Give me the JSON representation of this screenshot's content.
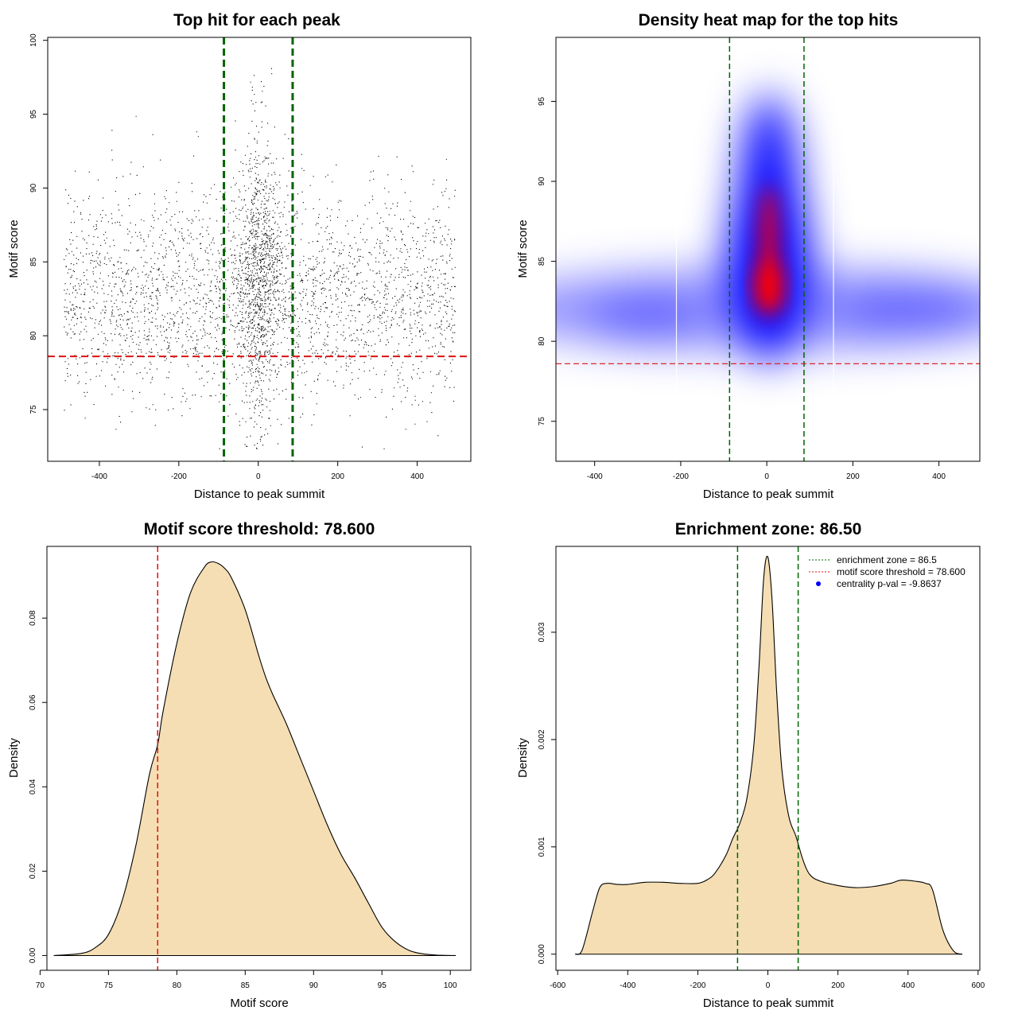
{
  "chart_data": [
    {
      "id": "scatter",
      "type": "scatter",
      "title": "Top hit for each peak",
      "xlabel": "Distance to peak summit",
      "ylabel": "Motif score",
      "xlim": [
        -530,
        535
      ],
      "ylim": [
        71.5,
        100.2
      ],
      "xticks": [
        -400,
        -200,
        0,
        200,
        400
      ],
      "yticks": [
        75,
        80,
        85,
        90,
        95,
        100
      ],
      "x_range_of_points": [
        -490,
        495
      ],
      "y_center_of_points": 83.5,
      "point_color": "#000000",
      "vlines": [
        -86.5,
        86.5
      ],
      "vline_color": "#006400",
      "hline": 78.6,
      "hline_color": "#dd1111",
      "grid": false
    },
    {
      "id": "heatmap",
      "type": "heatmap",
      "title": "Density heat map for the top hits",
      "xlabel": "Distance to peak summit",
      "ylabel": "Motif score",
      "xlim": [
        -490,
        495
      ],
      "ylim": [
        72.5,
        99
      ],
      "xticks": [
        -400,
        -200,
        0,
        200,
        400
      ],
      "yticks": [
        75,
        80,
        85,
        90,
        95
      ],
      "colormap": [
        "#ffffff",
        "#0000ff",
        "#ff0000"
      ],
      "density_peak": {
        "x": 5,
        "y": 83.5
      },
      "vlines": [
        -86.5,
        86.5
      ],
      "vline_color": "#006400",
      "hline": 78.6,
      "hline_color": "#dd1111"
    },
    {
      "id": "score-density",
      "type": "area",
      "title": "Motif score threshold: 78.600",
      "xlabel": "Motif score",
      "ylabel": "Density",
      "xlim": [
        70.5,
        101.5
      ],
      "ylim": [
        -0.0035,
        0.097
      ],
      "xticks": [
        70,
        75,
        80,
        85,
        90,
        95,
        100
      ],
      "yticks": [
        0.0,
        0.02,
        0.04,
        0.06,
        0.08
      ],
      "ytick_labels": [
        "0.00",
        "0.02",
        "0.04",
        "0.06",
        "0.08"
      ],
      "fill_color": "#f5deb3",
      "x": [
        71.0,
        73.0,
        74.0,
        75.0,
        76.0,
        77.0,
        78.0,
        78.6,
        79.0,
        80.0,
        81.0,
        82.0,
        82.5,
        83.0,
        83.5,
        84.0,
        85.0,
        86.0,
        86.5,
        87.0,
        88.0,
        89.0,
        90.0,
        91.0,
        92.0,
        93.0,
        94.0,
        95.0,
        96.0,
        97.0,
        98.0,
        99.0,
        100.4
      ],
      "y": [
        0.0,
        0.0005,
        0.0018,
        0.005,
        0.013,
        0.026,
        0.043,
        0.05,
        0.058,
        0.074,
        0.086,
        0.092,
        0.0933,
        0.093,
        0.0918,
        0.0895,
        0.082,
        0.071,
        0.066,
        0.062,
        0.055,
        0.047,
        0.039,
        0.031,
        0.024,
        0.0185,
        0.0125,
        0.0067,
        0.0032,
        0.0012,
        0.0004,
        0.0001,
        0.0
      ],
      "vline": 78.6,
      "vline_color": "#dd1111"
    },
    {
      "id": "distance-density",
      "type": "area",
      "title": "Enrichment zone: 86.50",
      "xlabel": "Distance to peak summit",
      "ylabel": "Density",
      "xlim": [
        -605,
        605
      ],
      "ylim": [
        -0.00015,
        0.0038
      ],
      "xticks": [
        -600,
        -400,
        -200,
        0,
        200,
        400,
        600
      ],
      "yticks": [
        0.0,
        0.001,
        0.002,
        0.003
      ],
      "ytick_labels": [
        "0.000",
        "0.001",
        "0.002",
        "0.003"
      ],
      "fill_color": "#f5deb3",
      "x": [
        -550,
        -530,
        -500,
        -480,
        -460,
        -430,
        -400,
        -350,
        -300,
        -250,
        -200,
        -170,
        -150,
        -120,
        -100,
        -80,
        -60,
        -40,
        -25,
        -12,
        0,
        12,
        25,
        40,
        60,
        80,
        100,
        120,
        150,
        200,
        250,
        300,
        350,
        380,
        420,
        450,
        470,
        500,
        530,
        555
      ],
      "y": [
        0.0,
        4e-05,
        0.0004,
        0.00062,
        0.00066,
        0.00065,
        0.00065,
        0.00067,
        0.00067,
        0.00066,
        0.00066,
        0.0007,
        0.00076,
        0.00092,
        0.00108,
        0.00122,
        0.00145,
        0.00195,
        0.0027,
        0.0035,
        0.0037,
        0.0033,
        0.00245,
        0.00172,
        0.00128,
        0.0011,
        0.00088,
        0.00074,
        0.00068,
        0.00064,
        0.00062,
        0.00063,
        0.00066,
        0.00069,
        0.00068,
        0.00066,
        0.0006,
        0.00022,
        3e-05,
        0.0
      ],
      "vlines": [
        -86.5,
        86.5
      ],
      "vline_color": "#006400",
      "legend_position": "top-right",
      "legend": [
        {
          "label": "enrichment zone = 86.5",
          "color": "#006400",
          "symbol": "dotted-line"
        },
        {
          "label": "motif score threshold = 78.600",
          "color": "#dd1111",
          "symbol": "dotted-line"
        },
        {
          "label": "centrality p-val = -9.8637",
          "color": "#0000ff",
          "symbol": "dot"
        }
      ]
    }
  ]
}
